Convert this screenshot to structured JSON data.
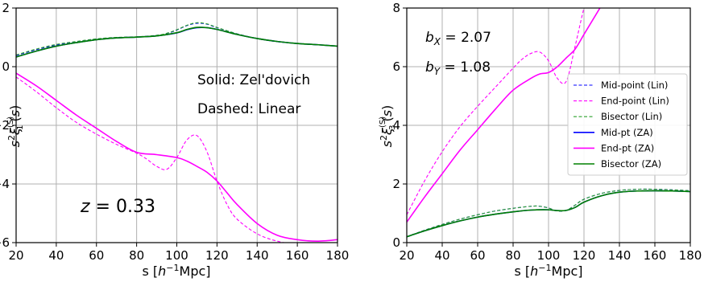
{
  "chart_data": [
    {
      "type": "line",
      "xlabel": "s [h⁻¹Mpc]",
      "ylabel": "s²ξ₁⁽ˢ⁾(s)",
      "xlim": [
        20,
        180
      ],
      "ylim": [
        -6,
        2
      ],
      "xticks": [
        "20",
        "40",
        "60",
        "80",
        "100",
        "120",
        "140",
        "160",
        "180"
      ],
      "yticks": [
        "−6",
        "−4",
        "−2",
        "0",
        "2"
      ],
      "grid": true,
      "annotations": [
        "Solid: Zel'dovich",
        "Dashed: Linear",
        "z = 0.33"
      ],
      "series": [
        {
          "name": "Mid-point (Lin)",
          "color": "#0000ff",
          "style": "dashed",
          "x": [
            20,
            30,
            40,
            50,
            60,
            70,
            80,
            90,
            95,
            100,
            105,
            110,
            115,
            120,
            130,
            140,
            150,
            160,
            170,
            180
          ],
          "y": [
            0.38,
            0.58,
            0.74,
            0.85,
            0.94,
            0.99,
            1.01,
            1.06,
            1.13,
            1.25,
            1.4,
            1.48,
            1.45,
            1.33,
            1.12,
            0.96,
            0.85,
            0.79,
            0.75,
            0.7
          ]
        },
        {
          "name": "End-point (Lin)",
          "color": "#ff00ff",
          "style": "dashed",
          "x": [
            20,
            30,
            40,
            50,
            60,
            70,
            80,
            85,
            90,
            95,
            100,
            105,
            110,
            115,
            120,
            125,
            130,
            140,
            150,
            160,
            170,
            180
          ],
          "y": [
            -0.35,
            -0.85,
            -1.4,
            -1.9,
            -2.3,
            -2.65,
            -2.95,
            -3.15,
            -3.4,
            -3.5,
            -3.1,
            -2.5,
            -2.35,
            -2.9,
            -3.9,
            -4.7,
            -5.2,
            -5.7,
            -5.95,
            -6.05,
            -6.05,
            -6.0
          ]
        },
        {
          "name": "Bisector (Lin)",
          "color": "#2ca02c",
          "style": "dashed",
          "x": [
            20,
            30,
            40,
            50,
            60,
            70,
            80,
            90,
            95,
            100,
            105,
            110,
            115,
            120,
            130,
            140,
            150,
            160,
            170,
            180
          ],
          "y": [
            0.4,
            0.6,
            0.76,
            0.86,
            0.95,
            1.0,
            1.02,
            1.07,
            1.14,
            1.26,
            1.41,
            1.5,
            1.46,
            1.34,
            1.12,
            0.96,
            0.86,
            0.8,
            0.75,
            0.7
          ]
        },
        {
          "name": "Mid-pt (ZA)",
          "color": "#0000ff",
          "style": "solid",
          "x": [
            20,
            30,
            40,
            50,
            60,
            70,
            80,
            90,
            100,
            105,
            110,
            115,
            120,
            130,
            140,
            150,
            160,
            170,
            180
          ],
          "y": [
            0.33,
            0.53,
            0.7,
            0.82,
            0.92,
            0.98,
            1.01,
            1.05,
            1.15,
            1.26,
            1.33,
            1.33,
            1.27,
            1.1,
            0.96,
            0.86,
            0.79,
            0.75,
            0.7
          ]
        },
        {
          "name": "End-pt (ZA)",
          "color": "#ff00ff",
          "style": "solid",
          "x": [
            20,
            30,
            40,
            50,
            60,
            70,
            80,
            90,
            100,
            105,
            110,
            115,
            120,
            125,
            130,
            140,
            150,
            160,
            170,
            180
          ],
          "y": [
            -0.22,
            -0.65,
            -1.15,
            -1.65,
            -2.1,
            -2.55,
            -2.92,
            -3.0,
            -3.1,
            -3.22,
            -3.4,
            -3.6,
            -3.9,
            -4.3,
            -4.7,
            -5.35,
            -5.75,
            -5.9,
            -5.95,
            -5.9
          ]
        },
        {
          "name": "Bisector (ZA)",
          "color": "#008000",
          "style": "solid",
          "x": [
            20,
            30,
            40,
            50,
            60,
            70,
            80,
            90,
            100,
            105,
            110,
            115,
            120,
            130,
            140,
            150,
            160,
            170,
            180
          ],
          "y": [
            0.33,
            0.53,
            0.7,
            0.82,
            0.92,
            0.98,
            1.01,
            1.05,
            1.16,
            1.27,
            1.34,
            1.33,
            1.27,
            1.1,
            0.96,
            0.86,
            0.79,
            0.75,
            0.7
          ]
        }
      ]
    },
    {
      "type": "line",
      "xlabel": "s [h⁻¹Mpc]",
      "ylabel": "s²ξ₃⁽ˢ⁾(s)",
      "xlim": [
        20,
        180
      ],
      "ylim": [
        0,
        8
      ],
      "xticks": [
        "20",
        "40",
        "60",
        "80",
        "100",
        "120",
        "140",
        "160",
        "180"
      ],
      "yticks": [
        "0",
        "2",
        "4",
        "6",
        "8"
      ],
      "grid": true,
      "annotations": [
        "b_X = 2.07",
        "b_Y = 1.08"
      ],
      "legend_position": "center-right",
      "series": [
        {
          "name": "Mid-point (Lin)",
          "color": "#0000ff",
          "style": "dashed",
          "x": [
            20,
            30,
            40,
            50,
            60,
            70,
            80,
            90,
            95,
            100,
            105,
            110,
            115,
            120,
            130,
            140,
            150,
            160,
            170,
            180
          ],
          "y": [
            0.2,
            0.42,
            0.62,
            0.8,
            0.95,
            1.08,
            1.17,
            1.24,
            1.24,
            1.18,
            1.08,
            1.1,
            1.28,
            1.48,
            1.68,
            1.78,
            1.82,
            1.82,
            1.8,
            1.77
          ]
        },
        {
          "name": "End-point (Lin)",
          "color": "#ff00ff",
          "style": "dashed",
          "x": [
            20,
            30,
            40,
            50,
            60,
            70,
            80,
            85,
            90,
            95,
            100,
            105,
            110,
            115,
            120,
            125
          ],
          "y": [
            0.95,
            2.1,
            3.1,
            3.95,
            4.65,
            5.3,
            5.95,
            6.25,
            6.45,
            6.5,
            6.2,
            5.6,
            5.5,
            6.7,
            8.0,
            9.0
          ]
        },
        {
          "name": "Bisector (Lin)",
          "color": "#2ca02c",
          "style": "dashed",
          "x": [
            20,
            30,
            40,
            50,
            60,
            70,
            80,
            90,
            95,
            100,
            105,
            110,
            115,
            120,
            130,
            140,
            150,
            160,
            170,
            180
          ],
          "y": [
            0.2,
            0.42,
            0.62,
            0.8,
            0.95,
            1.08,
            1.17,
            1.24,
            1.24,
            1.18,
            1.08,
            1.1,
            1.28,
            1.48,
            1.68,
            1.78,
            1.82,
            1.82,
            1.8,
            1.77
          ]
        },
        {
          "name": "Mid-pt (ZA)",
          "color": "#0000ff",
          "style": "solid",
          "x": [
            20,
            30,
            40,
            50,
            60,
            70,
            80,
            90,
            100,
            105,
            110,
            115,
            120,
            130,
            140,
            150,
            160,
            170,
            180
          ],
          "y": [
            0.2,
            0.4,
            0.58,
            0.74,
            0.87,
            0.97,
            1.05,
            1.11,
            1.12,
            1.09,
            1.1,
            1.2,
            1.38,
            1.6,
            1.72,
            1.76,
            1.77,
            1.76,
            1.74
          ]
        },
        {
          "name": "End-pt (ZA)",
          "color": "#ff00ff",
          "style": "solid",
          "x": [
            20,
            30,
            40,
            50,
            60,
            70,
            80,
            90,
            95,
            100,
            105,
            110,
            115,
            120,
            125,
            130
          ],
          "y": [
            0.7,
            1.55,
            2.35,
            3.15,
            3.85,
            4.55,
            5.2,
            5.6,
            5.75,
            5.8,
            6.0,
            6.3,
            6.6,
            7.1,
            7.6,
            8.1
          ]
        },
        {
          "name": "Bisector (ZA)",
          "color": "#008000",
          "style": "solid",
          "x": [
            20,
            30,
            40,
            50,
            60,
            70,
            80,
            90,
            100,
            105,
            110,
            115,
            120,
            130,
            140,
            150,
            160,
            170,
            180
          ],
          "y": [
            0.2,
            0.4,
            0.58,
            0.74,
            0.87,
            0.97,
            1.05,
            1.11,
            1.12,
            1.09,
            1.1,
            1.2,
            1.38,
            1.6,
            1.72,
            1.76,
            1.77,
            1.76,
            1.74
          ]
        }
      ]
    }
  ]
}
